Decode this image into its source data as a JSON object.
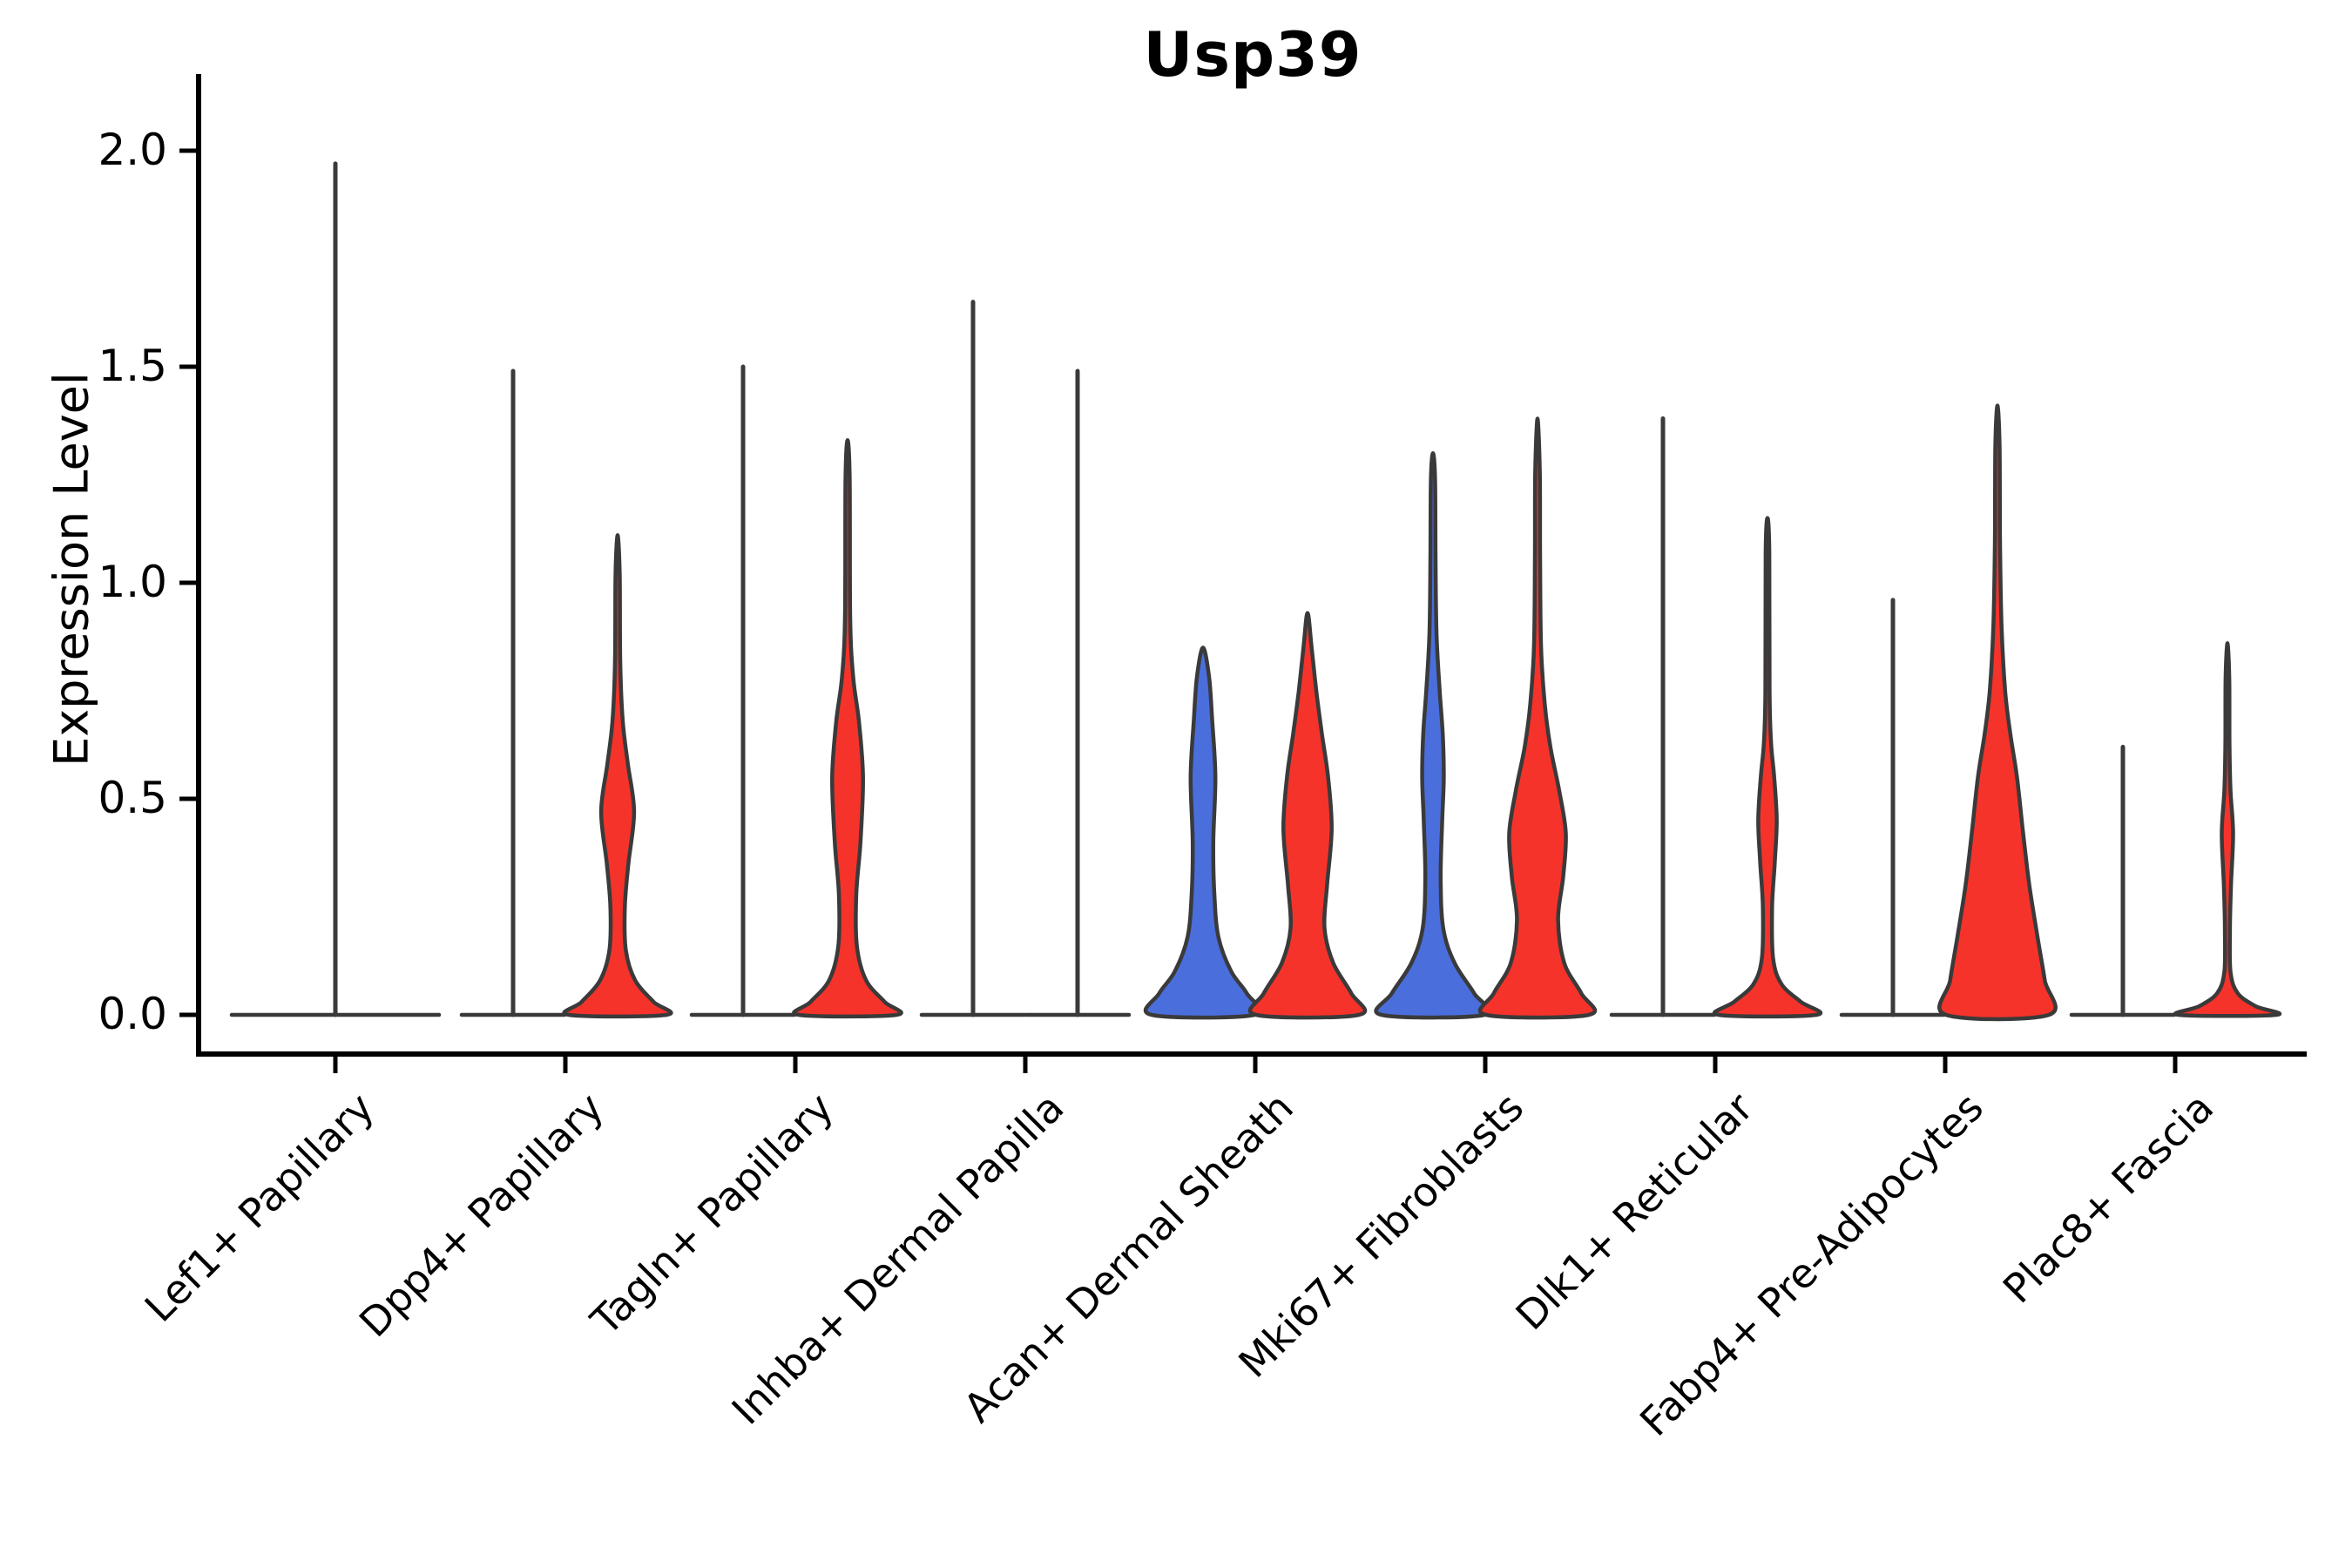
{
  "title": "Usp39",
  "y_axis": {
    "label": "Expression Level",
    "tick_labels": [
      "0.0",
      "0.5",
      "1.0",
      "1.5",
      "2.0"
    ],
    "tick_values": [
      0.0,
      0.5,
      1.0,
      1.5,
      2.0
    ],
    "limits": [
      0.0,
      2.05
    ]
  },
  "palette": {
    "red": "#f5332b",
    "blue": "#4a6edc",
    "violin_edge": "#3a3a3a",
    "axis": "#000000",
    "background": "#ffffff",
    "text": "#000000"
  },
  "chart_data": {
    "type": "violin",
    "title": "Usp39",
    "xlabel": "",
    "ylabel": "Expression Level",
    "ylim": [
      0.0,
      2.05
    ],
    "yticks": [
      0.0,
      0.5,
      1.0,
      1.5,
      2.0
    ],
    "grid": "off",
    "legend": "none",
    "x_tick_rotation": 45,
    "categories": [
      "Lef1+ Papillary",
      "Dpp4+ Papillary",
      "Tagln+ Papillary",
      "Inhba+ Dermal Papilla",
      "Acan+ Dermal Sheath",
      "Mki67+ Fibroblasts",
      "Dlk1+ Reticular",
      "Fabp4+ Pre-Adipocytes",
      "Plac8+ Fascia"
    ],
    "groups": [
      {
        "category": "Lef1+ Papillary",
        "violins": [
          {
            "side": "center",
            "shape": "spike",
            "fill": "none",
            "max_expression": 1.97,
            "bulk_at_zero": true
          }
        ]
      },
      {
        "category": "Dpp4+ Papillary",
        "violins": [
          {
            "side": "left",
            "shape": "spike",
            "fill": "none",
            "max_expression": 1.49,
            "bulk_at_zero": true
          },
          {
            "side": "right",
            "shape": "body",
            "fill": "red",
            "max_expression": 1.11,
            "profile": [
              [
                0,
                0.95
              ],
              [
                0.03,
                0.7
              ],
              [
                0.08,
                0.34
              ],
              [
                0.15,
                0.16
              ],
              [
                0.25,
                0.14
              ],
              [
                0.35,
                0.21
              ],
              [
                0.47,
                0.32
              ],
              [
                0.58,
                0.2
              ],
              [
                0.68,
                0.1
              ],
              [
                0.82,
                0.05
              ],
              [
                1.02,
                0.04
              ],
              [
                1.11,
                0
              ]
            ]
          }
        ]
      },
      {
        "category": "Tagln+ Papillary",
        "violins": [
          {
            "side": "left",
            "shape": "spike",
            "fill": "none",
            "max_expression": 1.5,
            "bulk_at_zero": true
          },
          {
            "side": "right",
            "shape": "body",
            "fill": "red",
            "max_expression": 1.33,
            "profile": [
              [
                0,
                0.95
              ],
              [
                0.03,
                0.72
              ],
              [
                0.08,
                0.36
              ],
              [
                0.16,
                0.18
              ],
              [
                0.28,
                0.17
              ],
              [
                0.4,
                0.25
              ],
              [
                0.55,
                0.3
              ],
              [
                0.68,
                0.22
              ],
              [
                0.78,
                0.11
              ],
              [
                0.92,
                0.05
              ],
              [
                1.24,
                0.04
              ],
              [
                1.33,
                0
              ]
            ]
          }
        ]
      },
      {
        "category": "Inhba+ Dermal Papilla",
        "violins": [
          {
            "side": "left",
            "shape": "spike",
            "fill": "none",
            "max_expression": 1.65,
            "bulk_at_zero": true
          },
          {
            "side": "right",
            "shape": "spike",
            "fill": "none",
            "max_expression": 1.49,
            "bulk_at_zero": true
          }
        ]
      },
      {
        "category": "Acan+ Dermal Sheath",
        "violins": [
          {
            "side": "left",
            "shape": "body",
            "fill": "blue",
            "max_expression": 0.85,
            "profile": [
              [
                0,
                1.0
              ],
              [
                0.05,
                0.85
              ],
              [
                0.1,
                0.55
              ],
              [
                0.18,
                0.3
              ],
              [
                0.28,
                0.22
              ],
              [
                0.4,
                0.2
              ],
              [
                0.55,
                0.24
              ],
              [
                0.68,
                0.18
              ],
              [
                0.78,
                0.12
              ],
              [
                0.85,
                0
              ]
            ]
          },
          {
            "side": "right",
            "shape": "body",
            "fill": "red",
            "max_expression": 0.93,
            "profile": [
              [
                0,
                1.0
              ],
              [
                0.05,
                0.85
              ],
              [
                0.12,
                0.5
              ],
              [
                0.2,
                0.33
              ],
              [
                0.3,
                0.38
              ],
              [
                0.43,
                0.47
              ],
              [
                0.55,
                0.4
              ],
              [
                0.65,
                0.28
              ],
              [
                0.75,
                0.17
              ],
              [
                0.85,
                0.08
              ],
              [
                0.93,
                0
              ]
            ]
          }
        ]
      },
      {
        "category": "Mki67+ Fibroblasts",
        "violins": [
          {
            "side": "left",
            "shape": "body",
            "fill": "blue",
            "max_expression": 1.3,
            "profile": [
              [
                0,
                1.0
              ],
              [
                0.05,
                0.8
              ],
              [
                0.12,
                0.42
              ],
              [
                0.2,
                0.2
              ],
              [
                0.32,
                0.15
              ],
              [
                0.45,
                0.18
              ],
              [
                0.55,
                0.21
              ],
              [
                0.65,
                0.19
              ],
              [
                0.75,
                0.13
              ],
              [
                0.88,
                0.07
              ],
              [
                1.05,
                0.05
              ],
              [
                1.24,
                0.04
              ],
              [
                1.3,
                0
              ]
            ]
          },
          {
            "side": "right",
            "shape": "body",
            "fill": "red",
            "max_expression": 1.38,
            "profile": [
              [
                0,
                1.0
              ],
              [
                0.05,
                0.85
              ],
              [
                0.12,
                0.52
              ],
              [
                0.22,
                0.4
              ],
              [
                0.32,
                0.5
              ],
              [
                0.42,
                0.55
              ],
              [
                0.52,
                0.42
              ],
              [
                0.62,
                0.25
              ],
              [
                0.72,
                0.14
              ],
              [
                0.85,
                0.07
              ],
              [
                1.05,
                0.05
              ],
              [
                1.25,
                0.045
              ],
              [
                1.38,
                0
              ]
            ]
          }
        ]
      },
      {
        "category": "Dlk1+ Reticular",
        "violins": [
          {
            "side": "left",
            "shape": "spike",
            "fill": "none",
            "max_expression": 1.38,
            "bulk_at_zero": true
          },
          {
            "side": "right",
            "shape": "body",
            "fill": "red",
            "max_expression": 1.15,
            "profile": [
              [
                0,
                0.95
              ],
              [
                0.03,
                0.65
              ],
              [
                0.07,
                0.28
              ],
              [
                0.13,
                0.11
              ],
              [
                0.25,
                0.09
              ],
              [
                0.35,
                0.14
              ],
              [
                0.45,
                0.18
              ],
              [
                0.55,
                0.13
              ],
              [
                0.63,
                0.07
              ],
              [
                0.75,
                0.04
              ],
              [
                1.07,
                0.035
              ],
              [
                1.15,
                0
              ]
            ]
          }
        ]
      },
      {
        "category": "Fabp4+ Pre-Adipocytes",
        "violins": [
          {
            "side": "left",
            "shape": "spike",
            "fill": "none",
            "max_expression": 0.96,
            "bulk_at_zero": true
          },
          {
            "side": "right",
            "shape": "body",
            "fill": "red",
            "max_expression": 1.41,
            "profile": [
              [
                0,
                1.0
              ],
              [
                0.08,
                0.92
              ],
              [
                0.18,
                0.78
              ],
              [
                0.3,
                0.62
              ],
              [
                0.42,
                0.5
              ],
              [
                0.55,
                0.38
              ],
              [
                0.65,
                0.25
              ],
              [
                0.75,
                0.15
              ],
              [
                0.9,
                0.08
              ],
              [
                1.1,
                0.05
              ],
              [
                1.32,
                0.04
              ],
              [
                1.41,
                0
              ]
            ]
          }
        ]
      },
      {
        "category": "Plac8+ Fascia",
        "violins": [
          {
            "side": "left",
            "shape": "spike",
            "fill": "none",
            "max_expression": 0.62,
            "bulk_at_zero": true
          },
          {
            "side": "right",
            "shape": "body",
            "fill": "red",
            "max_expression": 0.86,
            "profile": [
              [
                0,
                0.95
              ],
              [
                0.02,
                0.55
              ],
              [
                0.05,
                0.2
              ],
              [
                0.1,
                0.06
              ],
              [
                0.2,
                0.05
              ],
              [
                0.3,
                0.07
              ],
              [
                0.42,
                0.11
              ],
              [
                0.52,
                0.06
              ],
              [
                0.62,
                0.04
              ],
              [
                0.78,
                0.035
              ],
              [
                0.86,
                0
              ]
            ]
          }
        ]
      }
    ]
  }
}
